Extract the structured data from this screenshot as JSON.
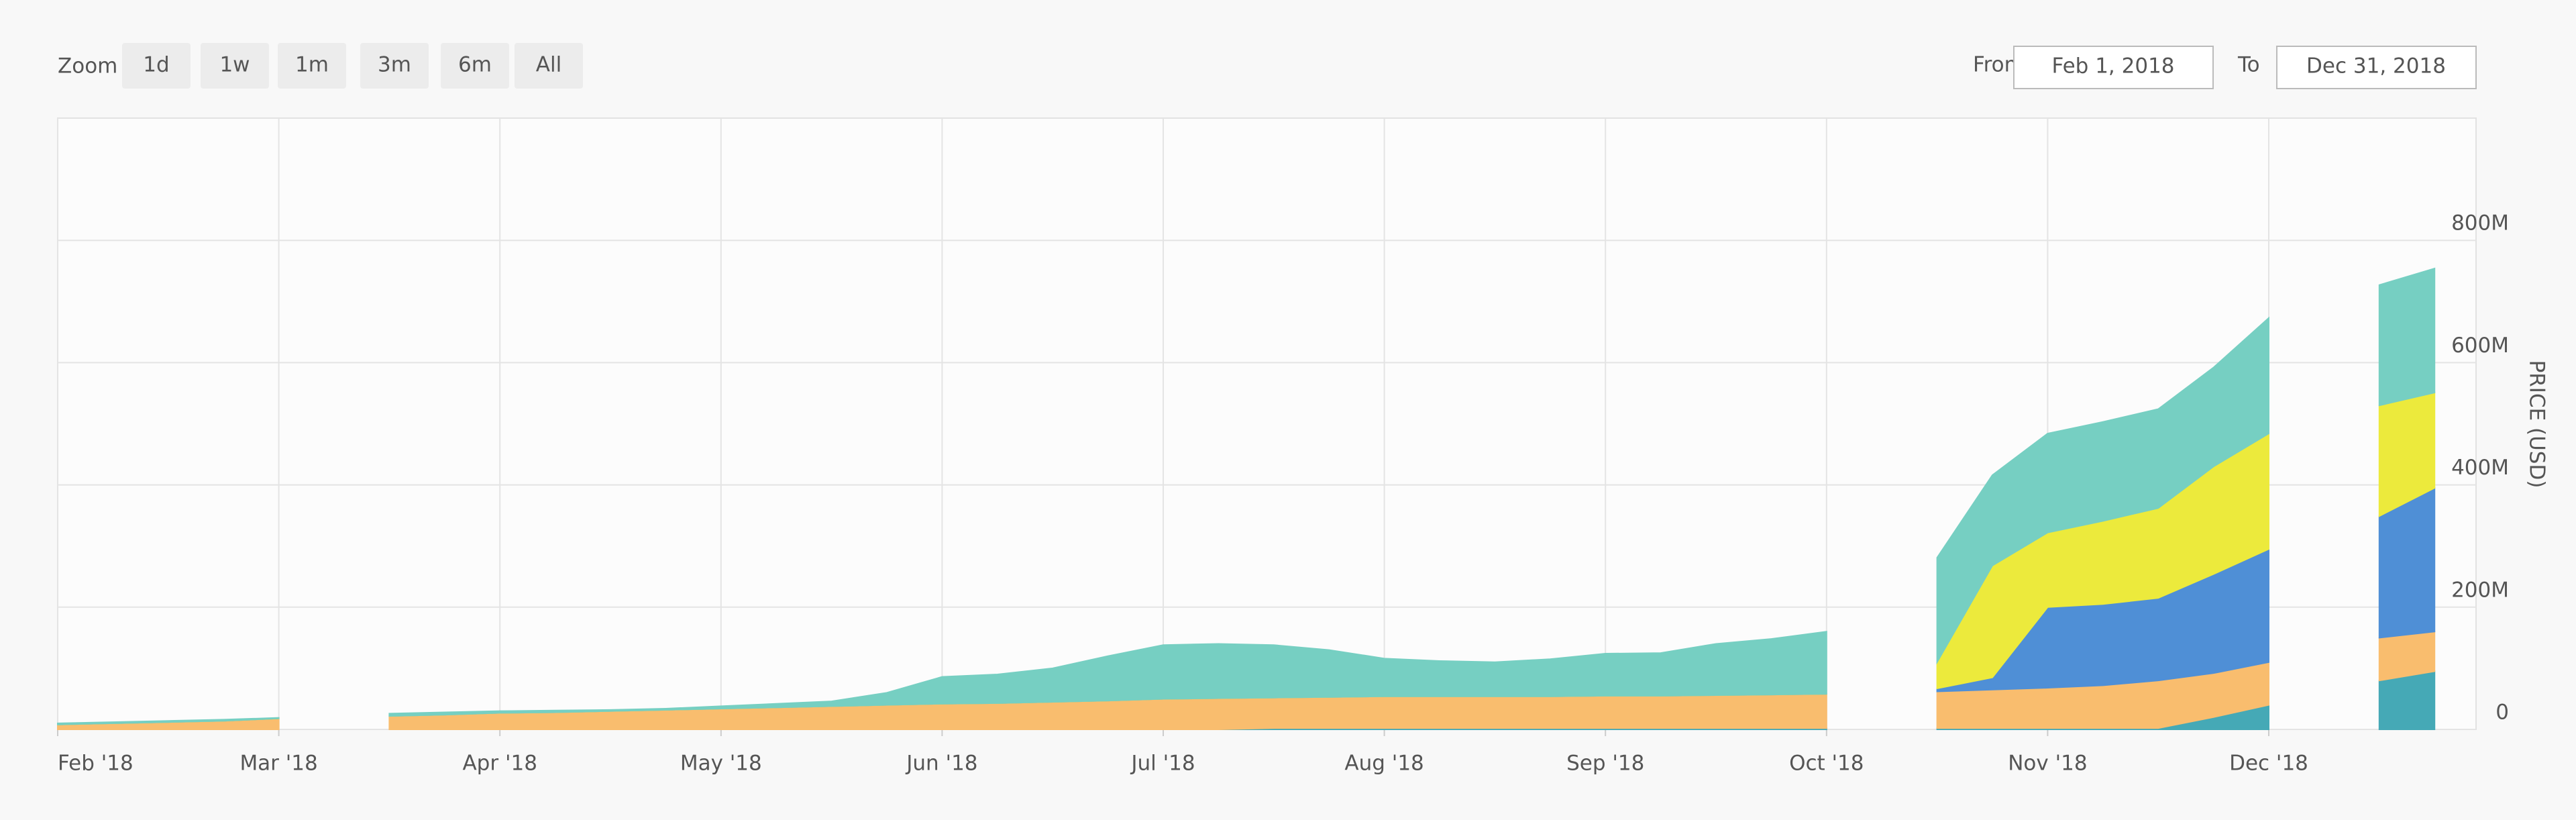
{
  "zoom": {
    "label": "Zoom",
    "buttons": [
      "1d",
      "1w",
      "1m",
      "3m",
      "6m",
      "All"
    ]
  },
  "range": {
    "from_label": "From",
    "from": "Feb 1, 2018",
    "to_label": "To",
    "to": "Dec 31, 2018"
  },
  "chart_data": {
    "type": "stacked_area",
    "y_axis_label": "PRICE (USD)",
    "categories": [
      "Feb '18",
      null,
      null,
      null,
      "Mar '18",
      null,
      null,
      null,
      "Apr '18",
      null,
      null,
      null,
      "May '18",
      null,
      null,
      null,
      "Jun '18",
      null,
      null,
      null,
      "Jul '18",
      null,
      null,
      null,
      "Aug '18",
      null,
      null,
      null,
      "Sep '18",
      null,
      null,
      null,
      "Oct '18",
      null,
      null,
      null,
      "Nov '18",
      null,
      null,
      null,
      "Dec '18",
      null,
      null,
      null
    ],
    "ylim": [
      0,
      1000000000
    ],
    "yticks": [
      {
        "value": 0,
        "label": "0"
      },
      {
        "value": 200000000,
        "label": "200M"
      },
      {
        "value": 400000000,
        "label": "400M"
      },
      {
        "value": 600000000,
        "label": "600M"
      },
      {
        "value": 800000000,
        "label": "800M"
      }
    ],
    "grid": true,
    "series": [
      {
        "color": "#45a9b6",
        "values": [
          0,
          0,
          0,
          0,
          0,
          null,
          0,
          0,
          0,
          0,
          0,
          0,
          0,
          0,
          0,
          0,
          0,
          0,
          0,
          0,
          0,
          0,
          2000000,
          2000000,
          2000000,
          2000000,
          2000000,
          2000000,
          2000000,
          2000000,
          2000000,
          2000000,
          2000000,
          null,
          2000000,
          2000000,
          2000000,
          2000000,
          2000000,
          20000000,
          40000000,
          null,
          80000000,
          95000000
        ]
      },
      {
        "color": "#f9bd6e",
        "values": [
          8000000,
          10000000,
          12000000,
          14000000,
          18000000,
          null,
          22000000,
          24000000,
          27000000,
          28000000,
          30000000,
          32000000,
          34000000,
          36000000,
          38000000,
          40000000,
          42000000,
          43000000,
          45000000,
          47000000,
          50000000,
          51000000,
          50000000,
          51000000,
          52000000,
          52000000,
          52000000,
          52000000,
          53000000,
          53000000,
          54000000,
          55000000,
          56000000,
          null,
          60000000,
          63000000,
          66000000,
          70000000,
          78000000,
          72000000,
          70000000,
          null,
          70000000,
          65000000
        ]
      },
      {
        "color": "#4f8fd6",
        "values": [
          0,
          0,
          0,
          0,
          0,
          null,
          0,
          0,
          0,
          0,
          0,
          0,
          0,
          0,
          0,
          0,
          0,
          0,
          0,
          0,
          0,
          0,
          0,
          0,
          0,
          0,
          0,
          0,
          0,
          0,
          0,
          0,
          0,
          null,
          5000000,
          20000000,
          132000000,
          133000000,
          135000000,
          162000000,
          185000000,
          null,
          199000000,
          235000000
        ]
      },
      {
        "color": "#ecea3c",
        "values": [
          0,
          0,
          0,
          0,
          0,
          null,
          0,
          0,
          0,
          0,
          0,
          0,
          0,
          0,
          0,
          0,
          0,
          0,
          0,
          0,
          0,
          0,
          0,
          0,
          0,
          0,
          0,
          0,
          0,
          0,
          0,
          0,
          0,
          null,
          43000000,
          183000000,
          122000000,
          136000000,
          147000000,
          176000000,
          189000000,
          null,
          181000000,
          156000000
        ]
      },
      {
        "color": "#76cfc2",
        "values": [
          2000000,
          2000000,
          2000000,
          2000000,
          1000000,
          null,
          4000000,
          4000000,
          3000000,
          3000000,
          2000000,
          2000000,
          4000000,
          6000000,
          8000000,
          20000000,
          44000000,
          47000000,
          55000000,
          73000000,
          88000000,
          89000000,
          86000000,
          77000000,
          62000000,
          58000000,
          56000000,
          61000000,
          69000000,
          70000000,
          84000000,
          91000000,
          102000000,
          null,
          171000000,
          148000000,
          162000000,
          162000000,
          162000000,
          162000000,
          189000000,
          null,
          197000000,
          203000000
        ]
      }
    ]
  }
}
